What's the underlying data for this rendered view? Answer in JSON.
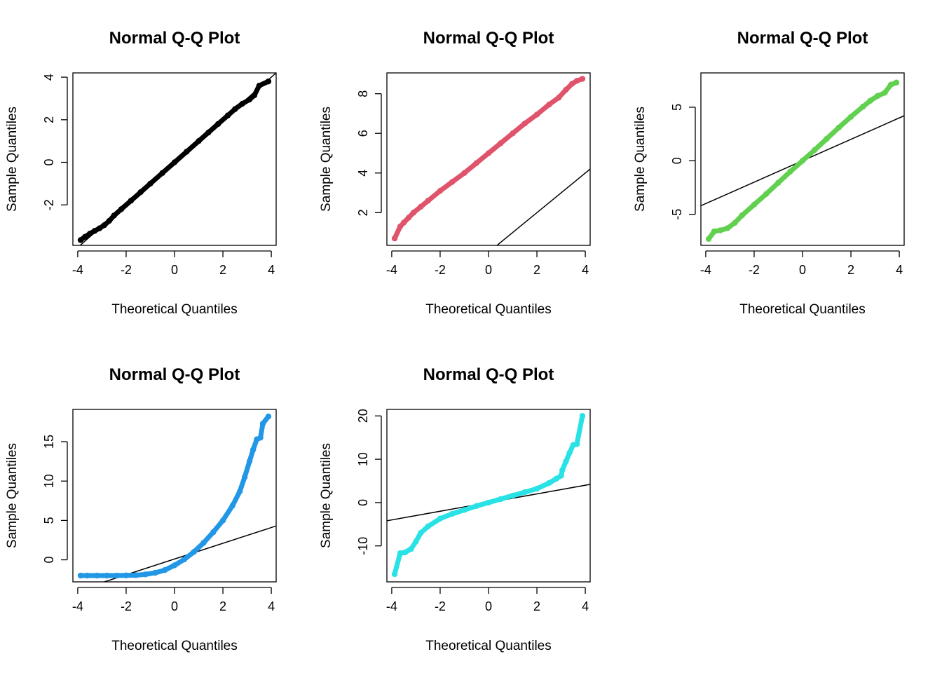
{
  "chart_data": [
    {
      "type": "scatter",
      "title": "Normal Q-Q Plot",
      "xlabel": "Theoretical Quantiles",
      "ylabel": "Sample Quantiles",
      "color": "#000000",
      "xlim": [
        -4.2,
        4.2
      ],
      "ylim": [
        -3.9,
        4.2
      ],
      "xticks": [
        "-4",
        "-2",
        "0",
        "2",
        "4"
      ],
      "yticks": [
        "-2",
        "0",
        "2",
        "4"
      ],
      "reference_line": {
        "intercept": 0,
        "slope": 1
      },
      "points": [
        [
          -3.88,
          -3.65
        ],
        [
          -3.7,
          -3.5
        ],
        [
          -3.5,
          -3.35
        ],
        [
          -3.3,
          -3.22
        ],
        [
          -3.1,
          -3.1
        ],
        [
          -2.9,
          -2.95
        ],
        [
          -2.7,
          -2.75
        ],
        [
          -2.5,
          -2.5
        ],
        [
          -2.2,
          -2.2
        ],
        [
          -1.8,
          -1.8
        ],
        [
          -1.4,
          -1.4
        ],
        [
          -1.0,
          -1.0
        ],
        [
          -0.5,
          -0.5
        ],
        [
          0.0,
          0.0
        ],
        [
          0.5,
          0.5
        ],
        [
          1.0,
          1.0
        ],
        [
          1.4,
          1.4
        ],
        [
          1.8,
          1.8
        ],
        [
          2.2,
          2.2
        ],
        [
          2.5,
          2.5
        ],
        [
          2.8,
          2.75
        ],
        [
          3.1,
          2.95
        ],
        [
          3.3,
          3.15
        ],
        [
          3.5,
          3.6
        ],
        [
          3.88,
          3.8
        ]
      ]
    },
    {
      "type": "scatter",
      "title": "Normal Q-Q Plot",
      "xlabel": "Theoretical Quantiles",
      "ylabel": "Sample Quantiles",
      "color": "#DF536B",
      "xlim": [
        -4.2,
        4.2
      ],
      "ylim": [
        0.35,
        9.05
      ],
      "xticks": [
        "-4",
        "-2",
        "0",
        "2",
        "4"
      ],
      "yticks": [
        "2",
        "4",
        "6",
        "8"
      ],
      "reference_line": {
        "intercept": 0,
        "slope": 1
      },
      "points": [
        [
          -3.88,
          0.7
        ],
        [
          -3.65,
          1.3
        ],
        [
          -3.5,
          1.5
        ],
        [
          -3.3,
          1.75
        ],
        [
          -3.1,
          2.0
        ],
        [
          -2.8,
          2.3
        ],
        [
          -2.5,
          2.6
        ],
        [
          -2.0,
          3.1
        ],
        [
          -1.5,
          3.55
        ],
        [
          -1.0,
          4.0
        ],
        [
          -0.5,
          4.5
        ],
        [
          0.0,
          5.0
        ],
        [
          0.5,
          5.5
        ],
        [
          1.0,
          6.0
        ],
        [
          1.5,
          6.5
        ],
        [
          2.0,
          6.95
        ],
        [
          2.5,
          7.45
        ],
        [
          2.9,
          7.8
        ],
        [
          3.2,
          8.2
        ],
        [
          3.45,
          8.5
        ],
        [
          3.65,
          8.65
        ],
        [
          3.88,
          8.75
        ]
      ]
    },
    {
      "type": "scatter",
      "title": "Normal Q-Q Plot",
      "xlabel": "Theoretical Quantiles",
      "ylabel": "Sample Quantiles",
      "color": "#61D04F",
      "xlim": [
        -4.2,
        4.2
      ],
      "ylim": [
        -7.9,
        8.2
      ],
      "xticks": [
        "-4",
        "-2",
        "0",
        "2",
        "4"
      ],
      "yticks": [
        "-5",
        "0",
        "5"
      ],
      "reference_line": {
        "intercept": 0,
        "slope": 1
      },
      "points": [
        [
          -3.88,
          -7.3
        ],
        [
          -3.65,
          -6.6
        ],
        [
          -3.4,
          -6.5
        ],
        [
          -3.1,
          -6.3
        ],
        [
          -2.8,
          -5.8
        ],
        [
          -2.5,
          -5.1
        ],
        [
          -2.0,
          -4.1
        ],
        [
          -1.5,
          -3.1
        ],
        [
          -1.0,
          -2.05
        ],
        [
          -0.5,
          -1.0
        ],
        [
          0.0,
          0.0
        ],
        [
          0.5,
          1.0
        ],
        [
          1.0,
          2.05
        ],
        [
          1.5,
          3.1
        ],
        [
          2.0,
          4.1
        ],
        [
          2.5,
          5.05
        ],
        [
          2.8,
          5.6
        ],
        [
          3.1,
          6.05
        ],
        [
          3.4,
          6.35
        ],
        [
          3.65,
          7.1
        ],
        [
          3.88,
          7.3
        ]
      ]
    },
    {
      "type": "scatter",
      "title": "Normal Q-Q Plot",
      "xlabel": "Theoretical Quantiles",
      "ylabel": "Sample Quantiles",
      "color": "#2297E6",
      "xlim": [
        -4.2,
        4.2
      ],
      "ylim": [
        -2.8,
        19.1
      ],
      "xticks": [
        "-4",
        "-2",
        "0",
        "2",
        "4"
      ],
      "yticks": [
        "0",
        "5",
        "10",
        "15"
      ],
      "reference_line": {
        "intercept": 0.1,
        "slope": 1
      },
      "points": [
        [
          -3.88,
          -2.0
        ],
        [
          -3.6,
          -2.0
        ],
        [
          -3.2,
          -2.0
        ],
        [
          -2.8,
          -2.0
        ],
        [
          -2.4,
          -2.0
        ],
        [
          -2.0,
          -1.98
        ],
        [
          -1.6,
          -1.95
        ],
        [
          -1.2,
          -1.85
        ],
        [
          -0.8,
          -1.65
        ],
        [
          -0.4,
          -1.3
        ],
        [
          0.0,
          -0.7
        ],
        [
          0.4,
          0.05
        ],
        [
          0.8,
          1.0
        ],
        [
          1.2,
          2.15
        ],
        [
          1.6,
          3.5
        ],
        [
          2.0,
          5.0
        ],
        [
          2.4,
          6.9
        ],
        [
          2.7,
          8.7
        ],
        [
          2.9,
          10.5
        ],
        [
          3.1,
          12.5
        ],
        [
          3.25,
          14.0
        ],
        [
          3.4,
          15.3
        ],
        [
          3.55,
          15.5
        ],
        [
          3.65,
          17.3
        ],
        [
          3.88,
          18.2
        ]
      ]
    },
    {
      "type": "scatter",
      "title": "Normal Q-Q Plot",
      "xlabel": "Theoretical Quantiles",
      "ylabel": "Sample Quantiles",
      "color": "#28E2E5",
      "xlim": [
        -4.2,
        4.2
      ],
      "ylim": [
        -18.3,
        21.5
      ],
      "xticks": [
        "-4",
        "-2",
        "0",
        "2",
        "4"
      ],
      "yticks": [
        "-10",
        "0",
        "10",
        "20"
      ],
      "reference_line": {
        "intercept": 0,
        "slope": 1
      },
      "points": [
        [
          -3.88,
          -16.5
        ],
        [
          -3.65,
          -11.7
        ],
        [
          -3.45,
          -11.5
        ],
        [
          -3.2,
          -10.7
        ],
        [
          -3.0,
          -9.0
        ],
        [
          -2.8,
          -7.0
        ],
        [
          -2.5,
          -5.5
        ],
        [
          -2.0,
          -3.7
        ],
        [
          -1.5,
          -2.6
        ],
        [
          -1.0,
          -1.7
        ],
        [
          -0.5,
          -0.8
        ],
        [
          0.0,
          0.0
        ],
        [
          0.5,
          0.8
        ],
        [
          1.0,
          1.6
        ],
        [
          1.5,
          2.4
        ],
        [
          2.0,
          3.2
        ],
        [
          2.5,
          4.5
        ],
        [
          2.8,
          5.5
        ],
        [
          3.0,
          6.2
        ],
        [
          3.05,
          7.5
        ],
        [
          3.2,
          9.5
        ],
        [
          3.35,
          11.5
        ],
        [
          3.5,
          13.3
        ],
        [
          3.65,
          13.5
        ],
        [
          3.88,
          20.0
        ]
      ]
    }
  ]
}
